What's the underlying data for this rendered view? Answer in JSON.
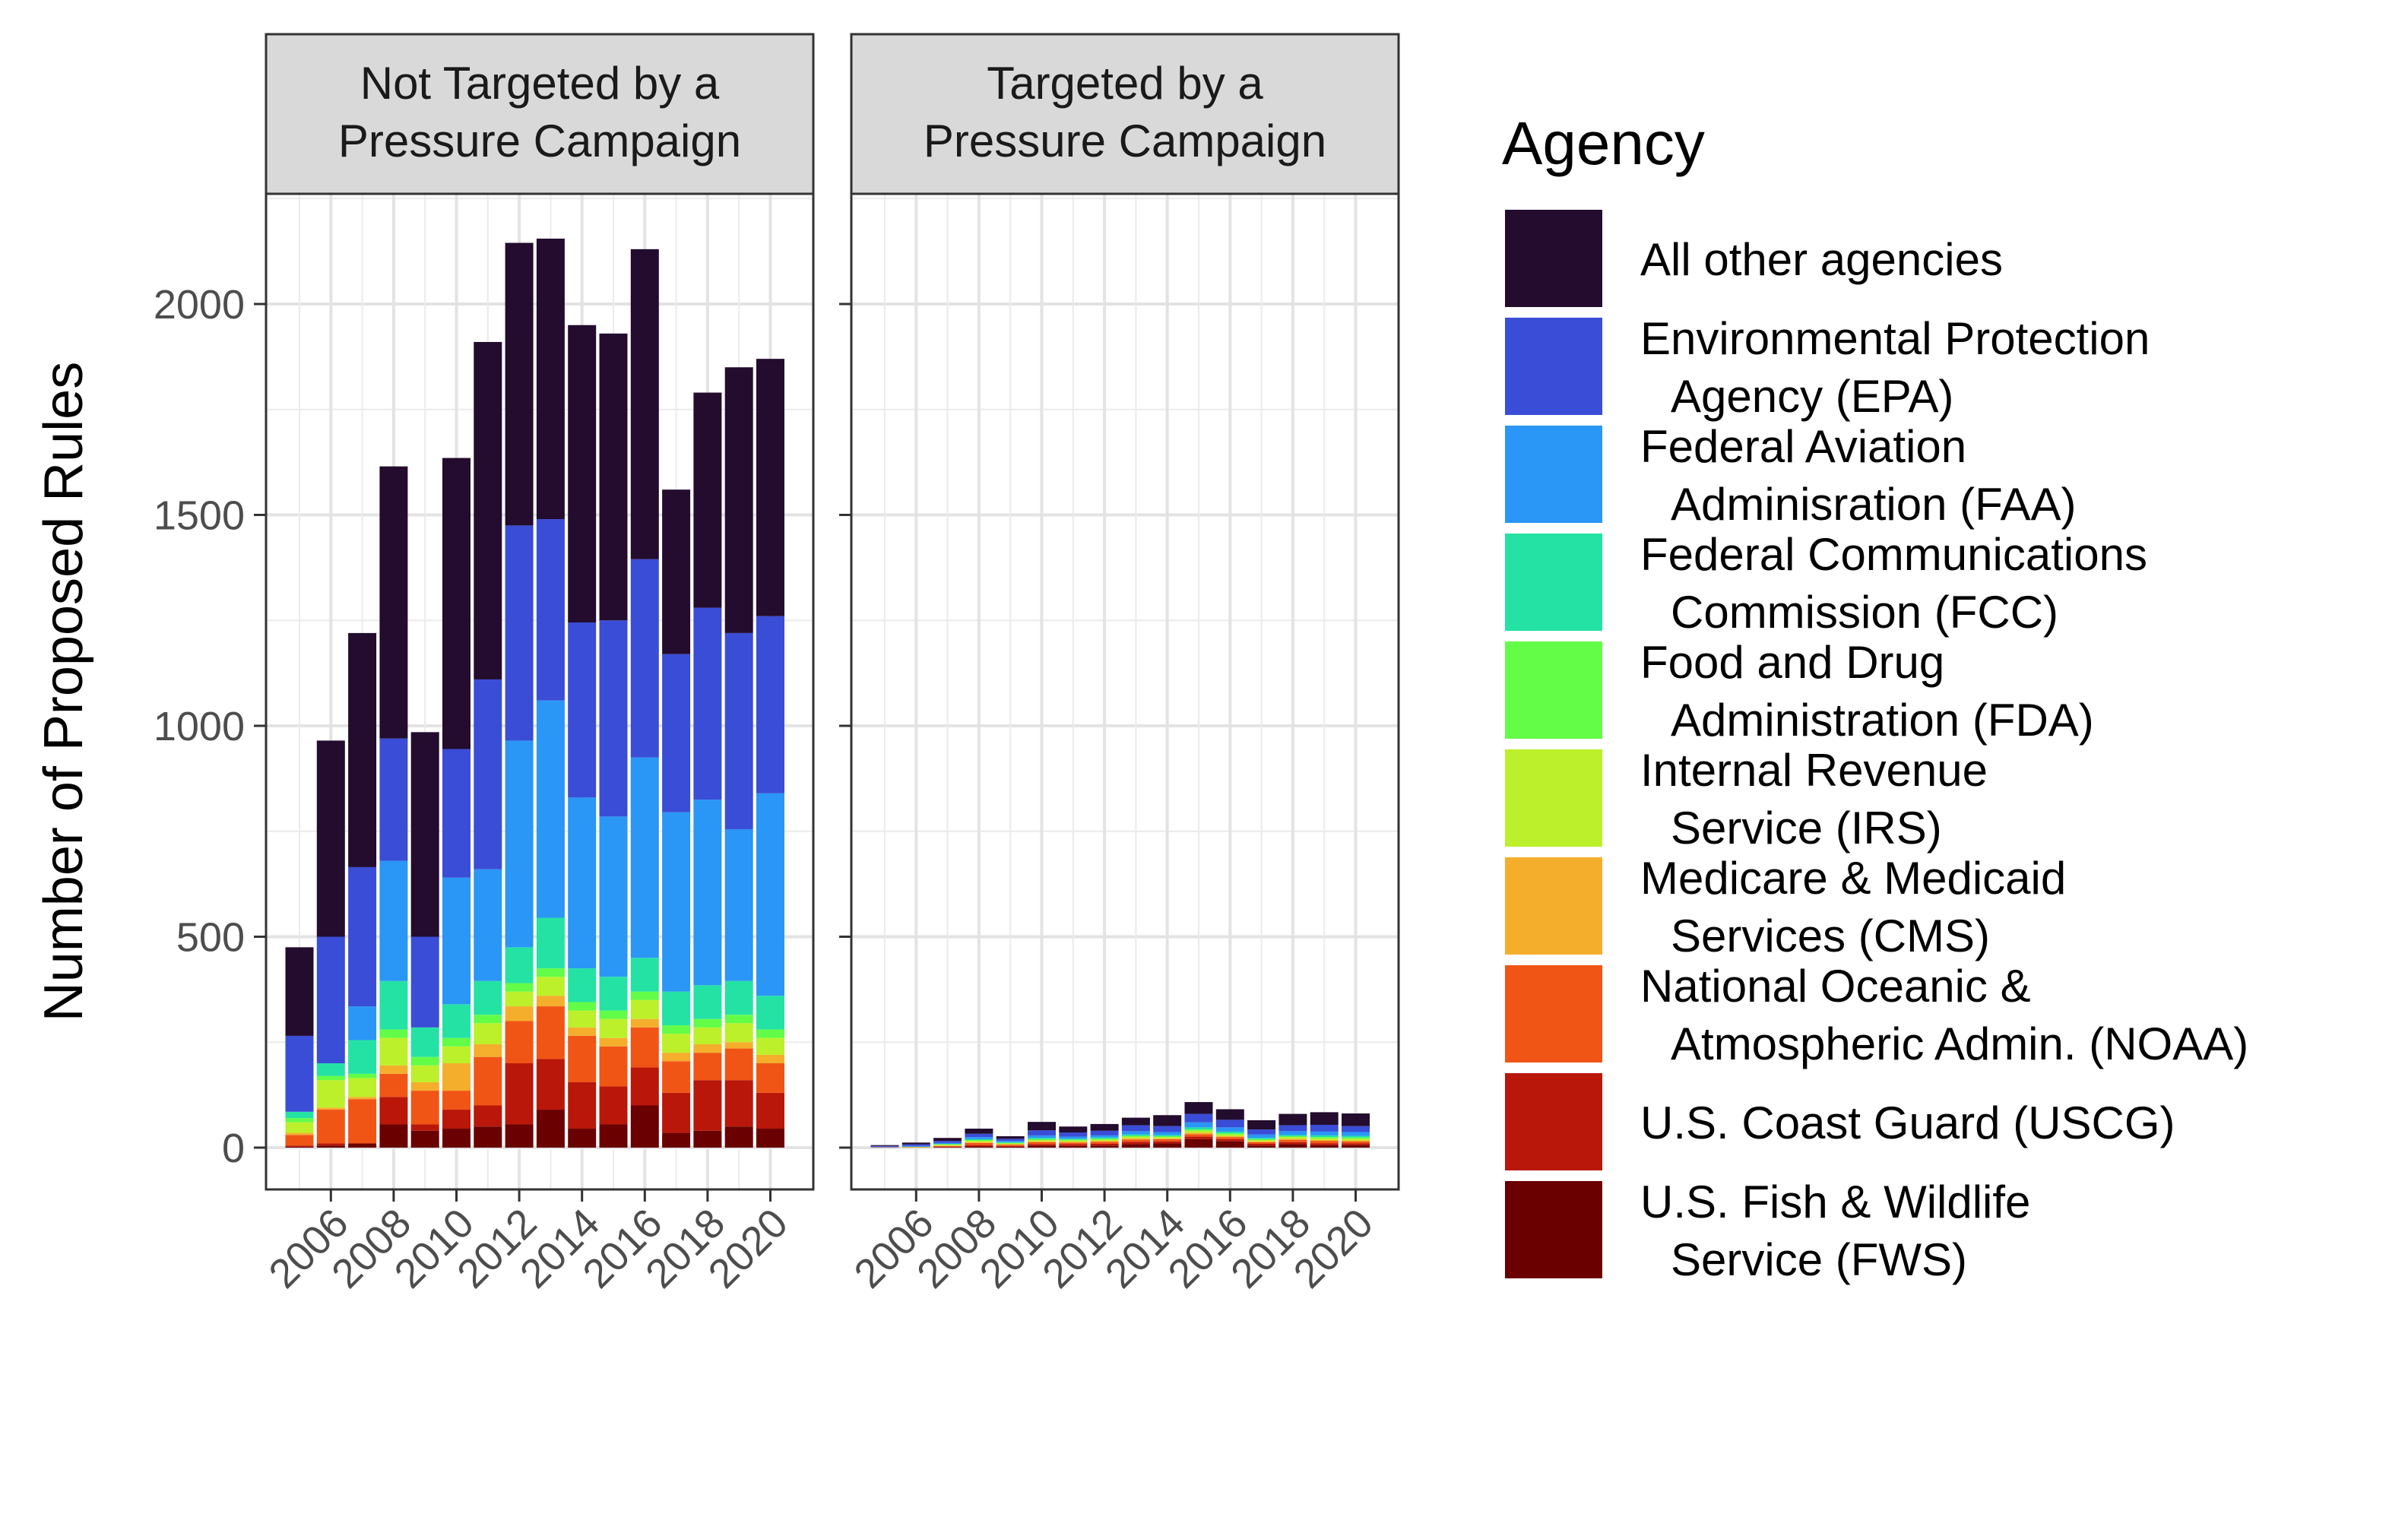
{
  "chart_data": {
    "type": "bar",
    "stacked": true,
    "panels": [
      {
        "title": [
          "Not Targeted by a",
          "Pressure Campaign"
        ]
      },
      {
        "title": [
          "Targeted by a",
          "Pressure Campaign"
        ]
      }
    ],
    "ylabel": "Number of Proposed Rules",
    "xlabel": "",
    "ylim": [
      0,
      2200
    ],
    "y_ticks": [
      0,
      500,
      1000,
      1500,
      2000
    ],
    "x_tick_labels": [
      "2006",
      "2008",
      "2010",
      "2012",
      "2014",
      "2016",
      "2018",
      "2020"
    ],
    "years": [
      2005,
      2006,
      2007,
      2008,
      2009,
      2010,
      2011,
      2012,
      2013,
      2014,
      2015,
      2016,
      2017,
      2018,
      2019,
      2020
    ],
    "grid": true,
    "legend": {
      "title": "Agency",
      "position": "right"
    },
    "series": [
      {
        "name": [
          "U.S. Fish & Wildlife",
          "Service (FWS)"
        ],
        "color": "#6a0000",
        "values": [
          [
            2,
            5,
            10,
            55,
            40,
            45,
            50,
            55,
            90,
            45,
            55,
            100,
            35,
            40,
            50,
            45
          ],
          [
            0,
            0,
            1,
            3,
            2,
            5,
            4,
            5,
            8,
            10,
            20,
            15,
            5,
            8,
            6,
            6
          ]
        ]
      },
      {
        "name": [
          "U.S. Coast Guard (USCG)"
        ],
        "color": "#b8170a",
        "values": [
          [
            3,
            5,
            0,
            65,
            15,
            45,
            50,
            145,
            120,
            110,
            90,
            90,
            95,
            120,
            110,
            85
          ],
          [
            0,
            0,
            1,
            3,
            2,
            3,
            4,
            4,
            6,
            5,
            6,
            5,
            4,
            5,
            4,
            4
          ]
        ]
      },
      {
        "name": [
          "National Oceanic &",
          "Atmospheric Admin. (NOAA)"
        ],
        "color": "#f05516",
        "values": [
          [
            25,
            80,
            105,
            55,
            80,
            45,
            115,
            100,
            125,
            110,
            95,
            95,
            75,
            65,
            75,
            70
          ],
          [
            1,
            1,
            2,
            5,
            3,
            5,
            4,
            5,
            5,
            5,
            6,
            5,
            4,
            5,
            6,
            5
          ]
        ]
      },
      {
        "name": [
          "Medicare & Medicaid",
          "Services (CMS)"
        ],
        "color": "#f5ae2c",
        "values": [
          [
            5,
            5,
            5,
            20,
            20,
            65,
            30,
            35,
            25,
            20,
            20,
            20,
            20,
            20,
            15,
            20
          ],
          [
            0,
            0,
            1,
            2,
            1,
            2,
            2,
            2,
            3,
            2,
            3,
            2,
            2,
            3,
            2,
            2
          ]
        ]
      },
      {
        "name": [
          "Internal Revenue",
          "Service (IRS)"
        ],
        "color": "#bcf02a",
        "values": [
          [
            25,
            65,
            45,
            65,
            40,
            40,
            50,
            35,
            45,
            40,
            45,
            45,
            45,
            40,
            45,
            40
          ],
          [
            0,
            1,
            2,
            3,
            2,
            3,
            3,
            3,
            4,
            3,
            5,
            4,
            3,
            4,
            4,
            4
          ]
        ]
      },
      {
        "name": [
          "Food and Drug",
          "Administration (FDA)"
        ],
        "color": "#63fc47",
        "values": [
          [
            10,
            10,
            10,
            20,
            20,
            20,
            20,
            20,
            20,
            20,
            20,
            20,
            20,
            20,
            20,
            20
          ],
          [
            0,
            0,
            1,
            2,
            1,
            2,
            2,
            2,
            2,
            2,
            3,
            3,
            2,
            2,
            3,
            3
          ]
        ]
      },
      {
        "name": [
          "Federal Communications",
          "Commission (FCC)"
        ],
        "color": "#24e2a4",
        "values": [
          [
            15,
            30,
            80,
            115,
            70,
            80,
            80,
            85,
            120,
            80,
            80,
            80,
            80,
            80,
            80,
            80
          ],
          [
            0,
            0,
            1,
            2,
            2,
            3,
            2,
            3,
            3,
            3,
            5,
            4,
            3,
            3,
            4,
            4
          ]
        ]
      },
      {
        "name": [
          "Federal Aviation",
          "Adminisration (FAA)"
        ],
        "color": "#2a96f5",
        "values": [
          [
            0,
            0,
            80,
            285,
            0,
            300,
            265,
            490,
            515,
            405,
            380,
            475,
            425,
            440,
            360,
            480
          ],
          [
            1,
            2,
            2,
            5,
            3,
            6,
            5,
            5,
            8,
            7,
            12,
            10,
            8,
            9,
            9,
            9
          ]
        ]
      },
      {
        "name": [
          "Environmental Protection",
          "Agency (EPA)"
        ],
        "color": "#3a4dd6",
        "values": [
          [
            180,
            300,
            330,
            290,
            215,
            305,
            450,
            510,
            430,
            415,
            465,
            470,
            375,
            455,
            465,
            420
          ],
          [
            2,
            4,
            5,
            8,
            5,
            12,
            10,
            11,
            14,
            14,
            20,
            18,
            12,
            14,
            16,
            14
          ]
        ]
      },
      {
        "name": [
          "All other agencies"
        ],
        "color": "#230c2d",
        "values": [
          [
            210,
            465,
            555,
            645,
            485,
            690,
            800,
            670,
            665,
            705,
            680,
            735,
            390,
            510,
            630,
            610
          ],
          [
            2,
            4,
            7,
            12,
            6,
            20,
            14,
            16,
            18,
            26,
            28,
            25,
            22,
            27,
            30,
            30
          ]
        ]
      }
    ]
  }
}
